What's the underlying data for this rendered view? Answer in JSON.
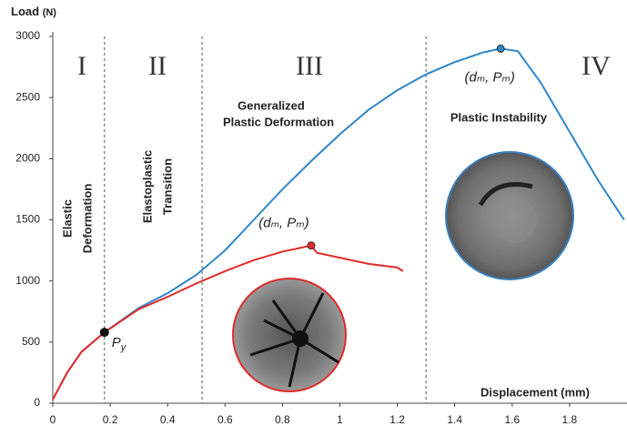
{
  "chart_data": {
    "type": "line",
    "y_label": "Load",
    "y_unit": "(N)",
    "x_label": "Displacement (mm)",
    "xlim": [
      0,
      2.0
    ],
    "ylim": [
      0,
      3000
    ],
    "xticks": [
      0,
      0.2,
      0.4,
      0.6,
      0.8,
      1,
      1.2,
      1.4,
      1.6,
      1.8
    ],
    "yticks": [
      0,
      500,
      1000,
      1500,
      2000,
      2500,
      3000
    ],
    "region_boundaries": [
      0.18,
      0.52,
      1.3
    ],
    "regions": [
      {
        "numeral": "I",
        "lines": [
          "Elastic",
          "Deformation"
        ]
      },
      {
        "numeral": "II",
        "lines": [
          "Elastoplastic",
          "Transition"
        ]
      },
      {
        "numeral": "III",
        "lines": [
          "Generalized",
          "Plastic Deformation"
        ]
      },
      {
        "numeral": "IV",
        "lines": [
          "Plastic Instability"
        ]
      }
    ],
    "series": [
      {
        "color": "#2e86c8",
        "x": [
          0,
          0.05,
          0.1,
          0.18,
          0.3,
          0.4,
          0.5,
          0.6,
          0.7,
          0.8,
          0.9,
          1.0,
          1.1,
          1.2,
          1.3,
          1.4,
          1.5,
          1.56,
          1.62,
          1.7,
          1.8,
          1.9,
          1.99
        ],
        "values": [
          30,
          250,
          420,
          580,
          780,
          900,
          1050,
          1250,
          1500,
          1750,
          1980,
          2200,
          2400,
          2560,
          2690,
          2790,
          2870,
          2900,
          2880,
          2620,
          2220,
          1820,
          1500
        ],
        "peak_index": 17,
        "peak_label": "(dₘ, Pₘ)"
      },
      {
        "color": "#e02a2a",
        "x": [
          0,
          0.05,
          0.1,
          0.18,
          0.3,
          0.4,
          0.5,
          0.6,
          0.7,
          0.8,
          0.9,
          0.92,
          1.0,
          1.1,
          1.2,
          1.22
        ],
        "values": [
          30,
          250,
          420,
          580,
          770,
          870,
          980,
          1080,
          1170,
          1240,
          1290,
          1230,
          1190,
          1140,
          1110,
          1080
        ],
        "peak_index": 10,
        "peak_label": "(dₘ, Pₘ)"
      }
    ],
    "yield_point": {
      "series": 1,
      "index": 3,
      "label": "P",
      "subscript": "y"
    }
  }
}
